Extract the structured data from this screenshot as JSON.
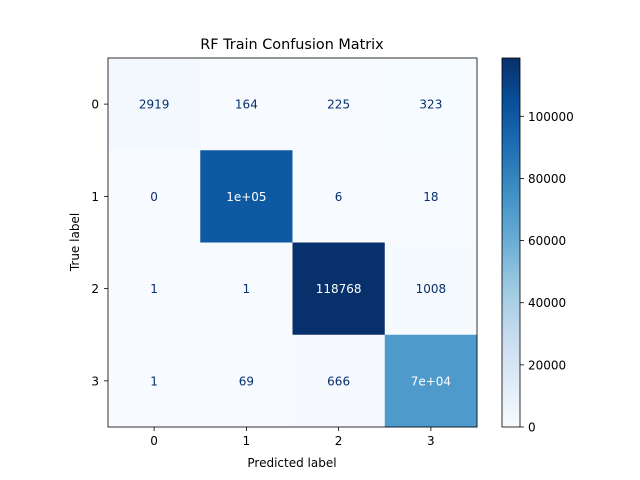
{
  "chart_data": {
    "type": "heatmap",
    "title": "RF Train Confusion Matrix",
    "xlabel": "Predicted label",
    "ylabel": "True label",
    "x_categories": [
      "0",
      "1",
      "2",
      "3"
    ],
    "y_categories": [
      "0",
      "1",
      "2",
      "3"
    ],
    "values": [
      [
        2919,
        164,
        225,
        323
      ],
      [
        0,
        100000,
        6,
        18
      ],
      [
        1,
        1,
        118768,
        1008
      ],
      [
        1,
        69,
        666,
        70000
      ]
    ],
    "cell_labels": [
      [
        "2919",
        "164",
        "225",
        "323"
      ],
      [
        "0",
        "1e+05",
        "6",
        "18"
      ],
      [
        "1",
        "1",
        "118768",
        "1008"
      ],
      [
        "1",
        "69",
        "666",
        "7e+04"
      ]
    ],
    "colormap": "Blues",
    "colorbar": {
      "range": [
        0,
        118768
      ],
      "ticks": [
        0,
        20000,
        40000,
        60000,
        80000,
        100000
      ],
      "tick_labels": [
        "0",
        "20000",
        "40000",
        "60000",
        "80000",
        "100000"
      ]
    },
    "text_colors": {
      "light": "#ffffff",
      "dark": "#08306b"
    },
    "grid": false
  }
}
